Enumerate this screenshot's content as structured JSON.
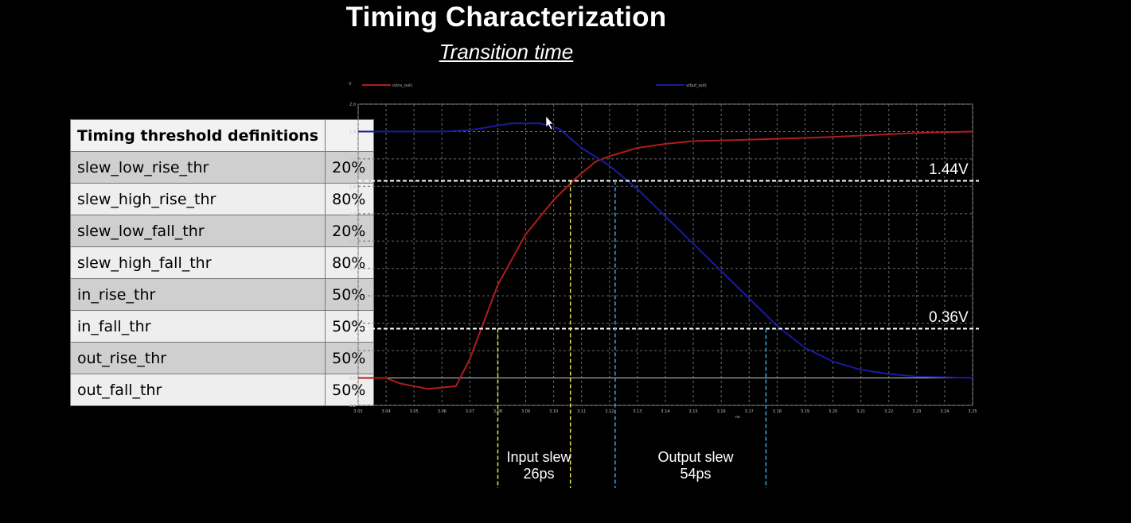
{
  "header": {
    "title": "Timing Characterization",
    "subtitle": "Transition time"
  },
  "threshold_table": {
    "heading": "Timing threshold definitions",
    "rows": [
      {
        "name": "slew_low_rise_thr",
        "value": "20%"
      },
      {
        "name": "slew_high_rise_thr",
        "value": "80%"
      },
      {
        "name": "slew_low_fall_thr",
        "value": "20%"
      },
      {
        "name": "slew_high_fall_thr",
        "value": "80%"
      },
      {
        "name": "in_rise_thr",
        "value": "50%"
      },
      {
        "name": "in_fall_thr",
        "value": "50%"
      },
      {
        "name": "out_rise_thr",
        "value": "50%"
      },
      {
        "name": "out_fall_thr",
        "value": "50%"
      }
    ]
  },
  "annotations": {
    "high_level": "1.44V",
    "low_level": "0.36V",
    "input_slew_label": "Input slew",
    "input_slew_value": "26ps",
    "output_slew_label": "Output slew",
    "output_slew_value": "54ps"
  },
  "chart_data": {
    "type": "line",
    "ylabel": "V",
    "xlabel": "ns",
    "xlim": [
      3.03,
      3.25
    ],
    "ylim": [
      -0.2,
      2.0
    ],
    "x_ticks": [
      "3.03",
      "3.04",
      "3.05",
      "3.06",
      "3.07",
      "3.08",
      "3.09",
      "3.10",
      "3.11",
      "3.12",
      "3.13",
      "3.14",
      "3.15",
      "3.16",
      "3.17",
      "3.18",
      "3.19",
      "3.20",
      "3.21",
      "3.22",
      "3.23",
      "3.24",
      "3.25"
    ],
    "y_ticks": [
      "-0.2",
      "0.0",
      "0.2",
      "0.4",
      "0.6",
      "0.8",
      "1.0",
      "1.2",
      "1.4",
      "1.6",
      "1.8",
      "2.0"
    ],
    "grid": true,
    "series": [
      {
        "name": "v(inv_out)",
        "color": "#b01c1c",
        "x": [
          3.03,
          3.04,
          3.045,
          3.055,
          3.065,
          3.07,
          3.08,
          3.09,
          3.1,
          3.108,
          3.115,
          3.12,
          3.13,
          3.14,
          3.15,
          3.17,
          3.2,
          3.23,
          3.25
        ],
        "y": [
          0.0,
          0.0,
          -0.04,
          -0.08,
          -0.06,
          0.14,
          0.68,
          1.05,
          1.3,
          1.46,
          1.58,
          1.62,
          1.68,
          1.71,
          1.73,
          1.74,
          1.76,
          1.79,
          1.8
        ]
      },
      {
        "name": "v(buf_out)",
        "color": "#1a1aa0",
        "x": [
          3.03,
          3.06,
          3.07,
          3.085,
          3.095,
          3.102,
          3.11,
          3.12,
          3.13,
          3.15,
          3.17,
          3.18,
          3.19,
          3.2,
          3.21,
          3.22,
          3.23,
          3.25
        ],
        "y": [
          1.8,
          1.8,
          1.81,
          1.86,
          1.86,
          1.82,
          1.68,
          1.55,
          1.38,
          0.98,
          0.58,
          0.38,
          0.22,
          0.12,
          0.06,
          0.03,
          0.01,
          0.0
        ]
      }
    ],
    "reference_lines": {
      "horizontal": [
        1.44,
        0.36
      ],
      "input_slew_markers": [
        3.08,
        3.106
      ],
      "output_slew_markers": [
        3.122,
        3.176
      ]
    }
  },
  "colors": {
    "background": "#000000",
    "rise_curve": "#b01c1c",
    "fall_curve": "#1a1aa0",
    "input_marker": "#e8e05a",
    "output_marker": "#3aa6e6"
  }
}
